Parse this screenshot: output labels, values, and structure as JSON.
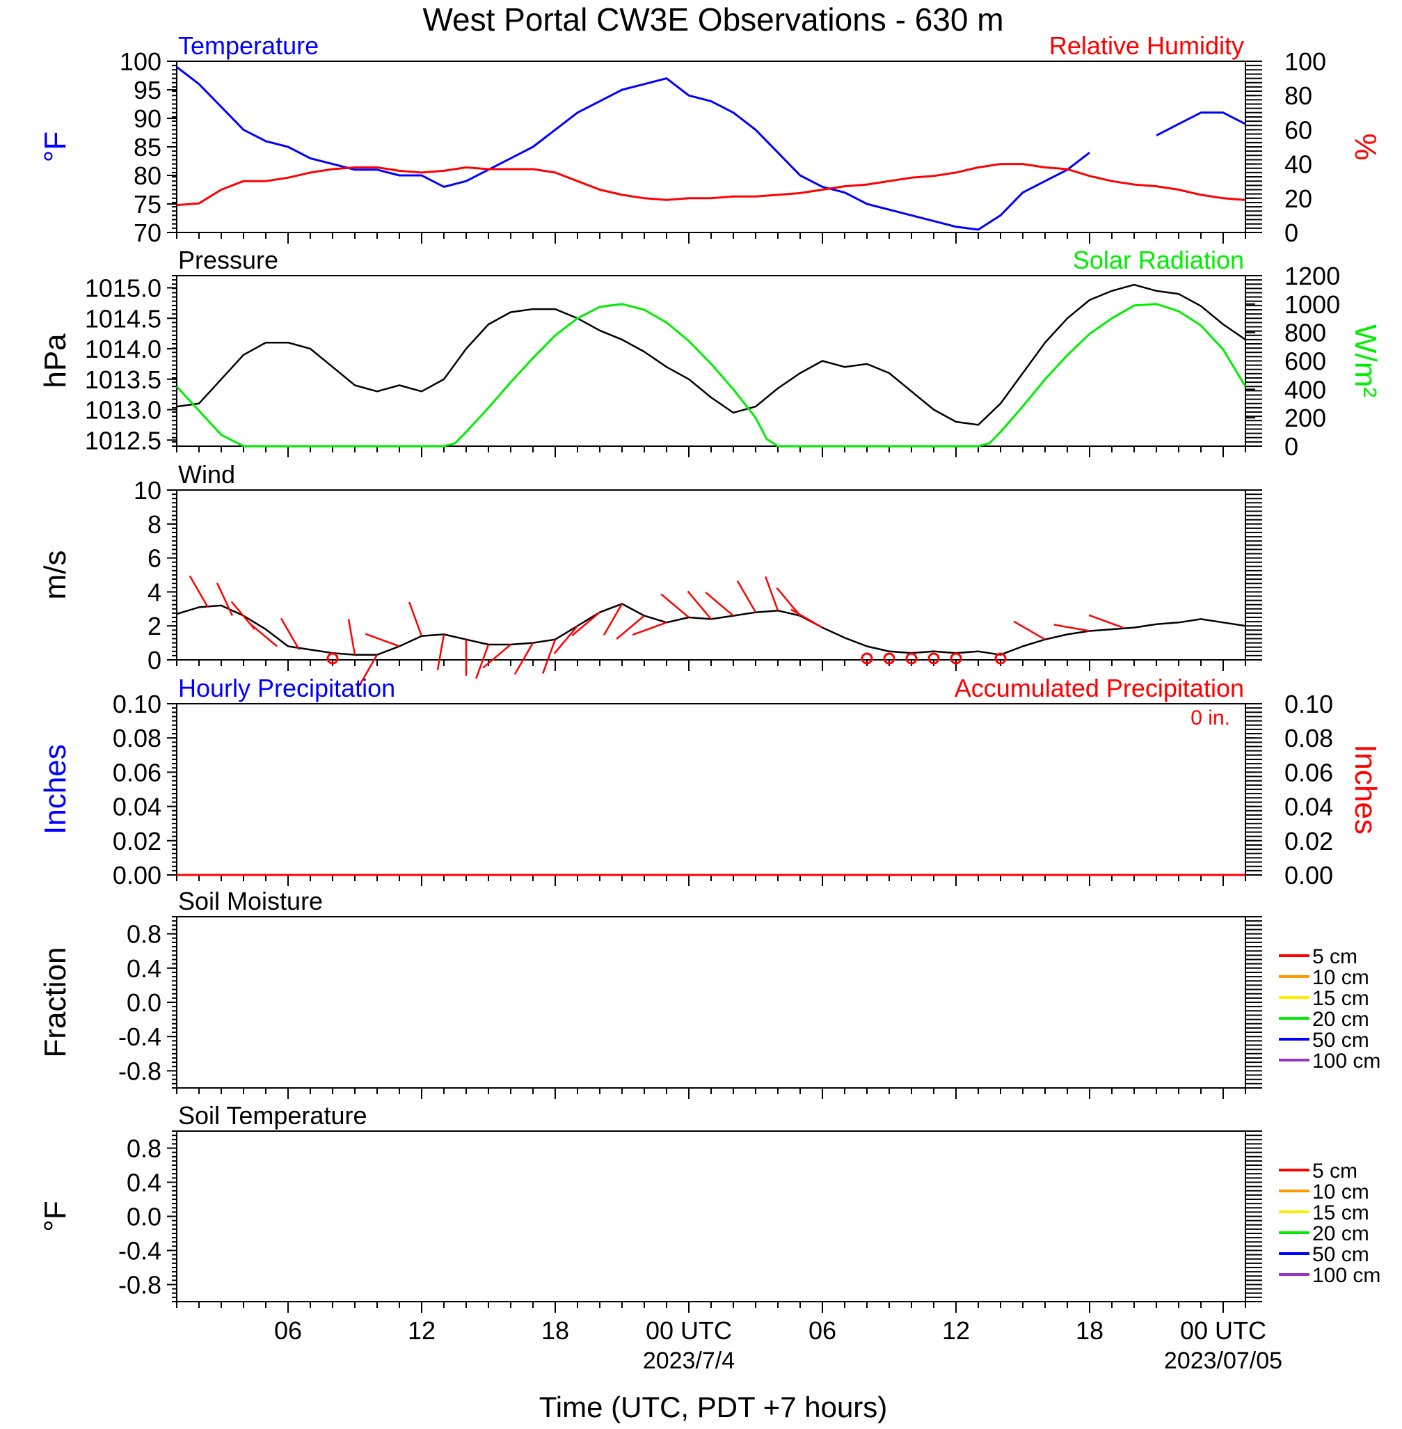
{
  "chart_data": {
    "title": "West Portal CW3E Observations - 630 m",
    "xlabel": "Time (UTC, PDT +7 hours)",
    "x_ticks": [
      "06",
      "12",
      "18",
      "00 UTC",
      "06",
      "12",
      "18",
      "00 UTC"
    ],
    "x_tick_hours": [
      6,
      12,
      18,
      24,
      30,
      36,
      42,
      48
    ],
    "x_date_labels": [
      {
        "hour": 24,
        "text": "2023/7/4"
      },
      {
        "hour": 48,
        "text": "2023/07/05"
      }
    ],
    "x_range_hours": [
      1,
      49
    ],
    "colors": {
      "temperature": "#0000ff",
      "humidity": "#ff0000",
      "pressure": "#000000",
      "solar": "#00ee00",
      "wind": "#000000",
      "barb": "#ff0000"
    },
    "panels": [
      {
        "type": "line",
        "left_title": "Temperature",
        "right_title": "Relative Humidity",
        "left_ylabel": "°F",
        "right_ylabel": "%",
        "left_ylim": [
          70,
          100
        ],
        "left_yticks": [
          "70",
          "75",
          "80",
          "85",
          "90",
          "95",
          "100"
        ],
        "right_ylim": [
          0,
          100
        ],
        "right_yticks": [
          "0",
          "20",
          "40",
          "60",
          "80",
          "100"
        ],
        "series": [
          {
            "name": "Temperature",
            "axis": "left",
            "color": "#0000ff",
            "x": [
              1,
              2,
              3,
              4,
              5,
              6,
              7,
              8,
              9,
              10,
              11,
              12,
              13,
              14,
              15,
              16,
              17,
              18,
              19,
              20,
              21,
              22,
              23,
              24,
              25,
              26,
              27,
              28,
              29,
              30,
              31,
              32,
              33,
              34,
              35,
              36,
              37,
              38,
              39,
              40,
              41,
              42,
              43,
              44,
              45,
              46,
              47,
              48,
              49
            ],
            "y": [
              99,
              96,
              92,
              88,
              86,
              85,
              83,
              82,
              81,
              81,
              80,
              80,
              78,
              79,
              81,
              83,
              85,
              88,
              91,
              93,
              95,
              96,
              97,
              94,
              93,
              91,
              88,
              84,
              80,
              78,
              77,
              75,
              74,
              73,
              72,
              71,
              70.5,
              73,
              77,
              79,
              81,
              84,
              null,
              null,
              87,
              89,
              91,
              91,
              89
            ]
          },
          {
            "name": "Relative Humidity",
            "axis": "right",
            "color": "#ff0000",
            "x": [
              1,
              2,
              3,
              4,
              5,
              6,
              7,
              8,
              9,
              10,
              11,
              12,
              13,
              14,
              15,
              16,
              17,
              18,
              19,
              20,
              21,
              22,
              23,
              24,
              25,
              26,
              27,
              28,
              29,
              30,
              31,
              32,
              33,
              34,
              35,
              36,
              37,
              38,
              39,
              40,
              41,
              42,
              43,
              44,
              45,
              46,
              47,
              48,
              49
            ],
            "y": [
              16,
              17,
              25,
              30,
              30,
              32,
              35,
              37,
              38,
              38,
              36,
              35,
              36,
              38,
              37,
              37,
              37,
              35,
              30,
              25,
              22,
              20,
              19,
              20,
              20,
              21,
              21,
              22,
              23,
              25,
              27,
              28,
              30,
              32,
              33,
              35,
              38,
              40,
              40,
              38,
              37,
              33,
              30,
              28,
              27,
              25,
              22,
              20,
              19
            ]
          }
        ]
      },
      {
        "type": "line",
        "left_title": "Pressure",
        "right_title": "Solar Radiation",
        "left_ylabel": "hPa",
        "right_ylabel": "W/m²",
        "left_ylim": [
          1012.4,
          1015.2
        ],
        "left_yticks": [
          "1012.5",
          "1013.0",
          "1013.5",
          "1014.0",
          "1014.5",
          "1015.0"
        ],
        "right_ylim": [
          0,
          1200
        ],
        "right_yticks": [
          "0",
          "200",
          "400",
          "600",
          "800",
          "1000",
          "1200"
        ],
        "series": [
          {
            "name": "Pressure",
            "axis": "left",
            "color": "#000000",
            "x": [
              1,
              2,
              3,
              4,
              5,
              6,
              7,
              8,
              9,
              10,
              11,
              12,
              13,
              14,
              15,
              16,
              17,
              18,
              19,
              20,
              21,
              22,
              23,
              24,
              25,
              26,
              27,
              28,
              29,
              30,
              31,
              32,
              33,
              34,
              35,
              36,
              37,
              38,
              39,
              40,
              41,
              42,
              43,
              44,
              45,
              46,
              47,
              48,
              49
            ],
            "y": [
              1013.05,
              1013.1,
              1013.5,
              1013.9,
              1014.1,
              1014.1,
              1014.0,
              1013.7,
              1013.4,
              1013.3,
              1013.4,
              1013.3,
              1013.5,
              1014.0,
              1014.4,
              1014.6,
              1014.65,
              1014.65,
              1014.5,
              1014.3,
              1014.15,
              1013.95,
              1013.7,
              1013.5,
              1013.2,
              1012.95,
              1013.05,
              1013.35,
              1013.6,
              1013.8,
              1013.7,
              1013.75,
              1013.6,
              1013.3,
              1013.0,
              1012.8,
              1012.75,
              1013.1,
              1013.6,
              1014.1,
              1014.5,
              1014.8,
              1014.95,
              1015.05,
              1014.95,
              1014.9,
              1014.7,
              1014.4,
              1014.15
            ]
          },
          {
            "name": "Solar Radiation",
            "axis": "right",
            "color": "#00ee00",
            "x": [
              1,
              2,
              3,
              4,
              5,
              6,
              7,
              8,
              9,
              10,
              11,
              12,
              13,
              13.5,
              14,
              15,
              16,
              17,
              18,
              19,
              20,
              21,
              22,
              23,
              24,
              25,
              26,
              27,
              27.5,
              28,
              29,
              30,
              31,
              32,
              33,
              34,
              35,
              36,
              37,
              37.5,
              38,
              39,
              40,
              41,
              42,
              43,
              44,
              45,
              46,
              47,
              48,
              49
            ],
            "y": [
              420,
              250,
              80,
              0,
              0,
              0,
              0,
              0,
              0,
              0,
              0,
              0,
              0,
              20,
              100,
              270,
              450,
              620,
              780,
              900,
              980,
              1000,
              960,
              870,
              740,
              580,
              400,
              200,
              50,
              0,
              0,
              0,
              0,
              0,
              0,
              0,
              0,
              0,
              0,
              20,
              100,
              280,
              470,
              640,
              790,
              900,
              990,
              1000,
              950,
              850,
              680,
              420
            ]
          }
        ]
      },
      {
        "type": "line",
        "left_title": "Wind",
        "left_ylabel": "m/s",
        "left_ylim": [
          0,
          10
        ],
        "left_yticks": [
          "0",
          "2",
          "4",
          "6",
          "8",
          "10"
        ],
        "series": [
          {
            "name": "Wind",
            "axis": "left",
            "color": "#000000",
            "x": [
              1,
              2,
              3,
              4,
              5,
              6,
              7,
              8,
              9,
              10,
              11,
              12,
              13,
              14,
              15,
              16,
              17,
              18,
              19,
              20,
              21,
              22,
              23,
              24,
              25,
              26,
              27,
              28,
              29,
              30,
              31,
              32,
              33,
              34,
              35,
              36,
              37,
              38,
              39,
              40,
              41,
              42,
              43,
              44,
              45,
              46,
              47,
              48,
              49
            ],
            "y": [
              2.7,
              3.1,
              3.2,
              2.6,
              1.8,
              0.8,
              0.6,
              0.4,
              0.3,
              0.3,
              0.8,
              1.4,
              1.5,
              1.2,
              0.9,
              0.9,
              1.0,
              1.2,
              2.0,
              2.8,
              3.3,
              2.6,
              2.2,
              2.5,
              2.4,
              2.6,
              2.8,
              2.9,
              2.6,
              1.9,
              1.3,
              0.8,
              0.5,
              0.4,
              0.5,
              0.4,
              0.5,
              0.3,
              0.8,
              1.2,
              1.5,
              1.7,
              1.8,
              1.9,
              2.1,
              2.2,
              2.4,
              2.2,
              2.0
            ]
          }
        ],
        "barbs": [
          {
            "hour": 2.4,
            "dir": 330,
            "speed": 3
          },
          {
            "hour": 3.5,
            "dir": 335,
            "speed": 3
          },
          {
            "hour": 4.5,
            "dir": 320,
            "speed": 2
          },
          {
            "hour": 5.5,
            "dir": 310,
            "speed": 2
          },
          {
            "hour": 6.5,
            "dir": 330,
            "speed": 1
          },
          {
            "hour": 9.0,
            "dir": 350,
            "speed": 1
          },
          {
            "hour": 10.0,
            "dir": 210,
            "speed": 1
          },
          {
            "hour": 11.0,
            "dir": 290,
            "speed": 1
          },
          {
            "hour": 12.0,
            "dir": 340,
            "speed": 1
          },
          {
            "hour": 13.0,
            "dir": 190,
            "speed": 1
          },
          {
            "hour": 14.0,
            "dir": 180,
            "speed": 1
          },
          {
            "hour": 15.0,
            "dir": 200,
            "speed": 1
          },
          {
            "hour": 16.0,
            "dir": 230,
            "speed": 1
          },
          {
            "hour": 17.0,
            "dir": 210,
            "speed": 1
          },
          {
            "hour": 18.0,
            "dir": 200,
            "speed": 1
          },
          {
            "hour": 19.0,
            "dir": 220,
            "speed": 2
          },
          {
            "hour": 20.0,
            "dir": 230,
            "speed": 2
          },
          {
            "hour": 21.0,
            "dir": 210,
            "speed": 2
          },
          {
            "hour": 22.0,
            "dir": 230,
            "speed": 2
          },
          {
            "hour": 23.0,
            "dir": 250,
            "speed": 2
          },
          {
            "hour": 24.0,
            "dir": 310,
            "speed": 3
          },
          {
            "hour": 25.0,
            "dir": 320,
            "speed": 3
          },
          {
            "hour": 26.0,
            "dir": 310,
            "speed": 3
          },
          {
            "hour": 27.0,
            "dir": 330,
            "speed": 2
          },
          {
            "hour": 28.0,
            "dir": 340,
            "speed": 2
          },
          {
            "hour": 29.0,
            "dir": 320,
            "speed": 2
          },
          {
            "hour": 30.0,
            "dir": 300,
            "speed": 1
          },
          {
            "hour": 40.0,
            "dir": 300,
            "speed": 2
          },
          {
            "hour": 42.0,
            "dir": 280,
            "speed": 2
          },
          {
            "hour": 43.5,
            "dir": 290,
            "speed": 2
          }
        ],
        "calms": [
          8,
          32,
          33,
          34,
          35,
          36,
          38
        ]
      },
      {
        "type": "bar",
        "left_title": "Hourly Precipitation",
        "right_title": "Accumulated Precipitation",
        "accumulated_total": "0 in.",
        "left_ylabel": "Inches",
        "right_ylabel": "Inches",
        "left_ylim": [
          0,
          0.1
        ],
        "left_yticks": [
          "0.00",
          "0.02",
          "0.04",
          "0.06",
          "0.08",
          "0.10"
        ],
        "right_ylim": [
          0,
          0.1
        ],
        "right_yticks": [
          "0.00",
          "0.02",
          "0.04",
          "0.06",
          "0.08",
          "0.10"
        ],
        "series": [
          {
            "name": "Hourly Precipitation",
            "color": "#0000ff",
            "values_constant": 0
          },
          {
            "name": "Accumulated Precipitation",
            "color": "#ff0000",
            "values_constant": 0
          }
        ]
      },
      {
        "type": "line",
        "left_title": "Soil Moisture",
        "left_ylabel": "Fraction",
        "left_ylim": [
          -1,
          1
        ],
        "left_yticks": [
          "-0.8",
          "-0.4",
          "0.0",
          "0.4",
          "0.8"
        ],
        "legend": [
          {
            "name": "5 cm",
            "color": "#ff0000"
          },
          {
            "name": "10 cm",
            "color": "#ff9900"
          },
          {
            "name": "15 cm",
            "color": "#ffee00"
          },
          {
            "name": "20 cm",
            "color": "#00ee00"
          },
          {
            "name": "50 cm",
            "color": "#0000ff"
          },
          {
            "name": "100 cm",
            "color": "#9933cc"
          }
        ]
      },
      {
        "type": "line",
        "left_title": "Soil Temperature",
        "left_ylabel": "°F",
        "left_ylim": [
          -1,
          1
        ],
        "left_yticks": [
          "-0.8",
          "-0.4",
          "0.0",
          "0.4",
          "0.8"
        ],
        "legend": [
          {
            "name": "5 cm",
            "color": "#ff0000"
          },
          {
            "name": "10 cm",
            "color": "#ff9900"
          },
          {
            "name": "15 cm",
            "color": "#ffee00"
          },
          {
            "name": "20 cm",
            "color": "#00ee00"
          },
          {
            "name": "50 cm",
            "color": "#0000ff"
          },
          {
            "name": "100 cm",
            "color": "#9933cc"
          }
        ]
      }
    ]
  }
}
